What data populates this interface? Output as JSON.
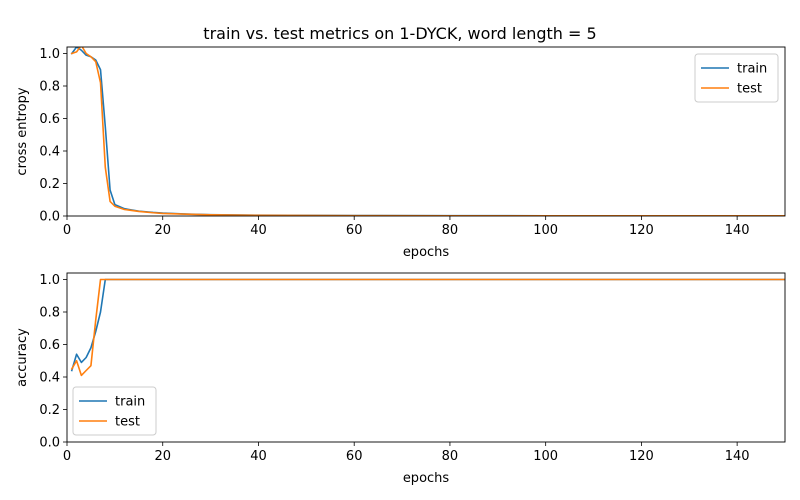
{
  "title": "train vs. test metrics on 1-DYCK, word length = 5",
  "colors": {
    "train": "#1f77b4",
    "test": "#ff7f0e"
  },
  "chart_data": [
    {
      "type": "line",
      "xlabel": "epochs",
      "ylabel": "cross entropy",
      "xlim": [
        0,
        150
      ],
      "ylim": [
        0,
        1.04
      ],
      "xticks": [
        "0",
        "20",
        "40",
        "60",
        "80",
        "100",
        "120",
        "140"
      ],
      "yticks": [
        "0.0",
        "0.2",
        "0.4",
        "0.6",
        "0.8",
        "1.0"
      ],
      "legend": "upper-right",
      "series": [
        {
          "name": "train",
          "x": [
            1,
            2,
            3,
            4,
            5,
            6,
            7,
            8,
            9,
            10,
            12,
            15,
            18,
            20,
            25,
            30,
            40,
            60,
            80,
            100,
            120,
            150
          ],
          "y": [
            1.0,
            1.04,
            1.02,
            0.99,
            0.98,
            0.96,
            0.9,
            0.55,
            0.16,
            0.07,
            0.045,
            0.03,
            0.022,
            0.018,
            0.012,
            0.008,
            0.005,
            0.003,
            0.002,
            0.0015,
            0.001,
            0.001
          ]
        },
        {
          "name": "test",
          "x": [
            1,
            2,
            3,
            4,
            5,
            6,
            7,
            8,
            9,
            10,
            12,
            15,
            18,
            20,
            25,
            30,
            40,
            60,
            80,
            100,
            120,
            150
          ],
          "y": [
            1.0,
            1.01,
            1.05,
            1.0,
            0.98,
            0.95,
            0.82,
            0.3,
            0.09,
            0.06,
            0.04,
            0.028,
            0.02,
            0.016,
            0.011,
            0.007,
            0.004,
            0.002,
            0.0015,
            0.001,
            0.001,
            0.001
          ]
        }
      ]
    },
    {
      "type": "line",
      "xlabel": "epochs",
      "ylabel": "accuracy",
      "xlim": [
        0,
        150
      ],
      "ylim": [
        0,
        1.04
      ],
      "xticks": [
        "0",
        "20",
        "40",
        "60",
        "80",
        "100",
        "120",
        "140"
      ],
      "yticks": [
        "0.0",
        "0.2",
        "0.4",
        "0.6",
        "0.8",
        "1.0"
      ],
      "legend": "lower-left",
      "series": [
        {
          "name": "train",
          "x": [
            1,
            2,
            3,
            4,
            5,
            6,
            7,
            8,
            9,
            150
          ],
          "y": [
            0.44,
            0.54,
            0.49,
            0.52,
            0.58,
            0.68,
            0.8,
            1.0,
            1.0,
            1.0
          ]
        },
        {
          "name": "test",
          "x": [
            1,
            2,
            3,
            4,
            5,
            6,
            7,
            8,
            9,
            150
          ],
          "y": [
            0.45,
            0.5,
            0.41,
            0.44,
            0.47,
            0.75,
            1.0,
            1.0,
            1.0,
            1.0
          ]
        }
      ]
    }
  ]
}
